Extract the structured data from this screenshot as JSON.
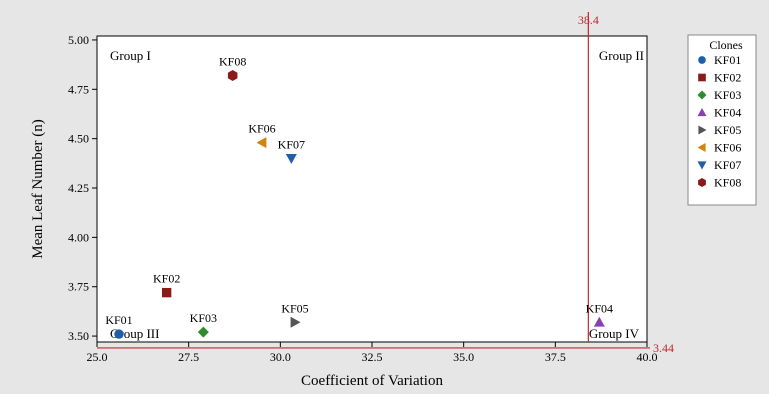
{
  "chart_data": {
    "type": "scatter",
    "xlabel": "Coefficient of Variation",
    "ylabel": "Mean Leaf Number (n)",
    "xlim": [
      25.0,
      40.0
    ],
    "ylim": [
      3.47,
      5.02
    ],
    "xticks": [
      25.0,
      27.5,
      30.0,
      32.5,
      35.0,
      37.5,
      40.0
    ],
    "xtick_labels": [
      "25.0",
      "27.5",
      "30.0",
      "32.5",
      "35.0",
      "37.5",
      "40.0"
    ],
    "yticks": [
      3.5,
      3.75,
      4.0,
      4.25,
      4.5,
      4.75,
      5.0
    ],
    "ytick_labels": [
      "3.50",
      "3.75",
      "4.00",
      "4.25",
      "4.50",
      "4.75",
      "5.00"
    ],
    "grid": false,
    "legend_title": "Clones",
    "legend_position": "right",
    "series": [
      {
        "name": "KF01",
        "x": 25.6,
        "y": 3.51,
        "marker": "circle",
        "color": "#1f5fa8"
      },
      {
        "name": "KF02",
        "x": 26.9,
        "y": 3.72,
        "marker": "square",
        "color": "#8b1a1a"
      },
      {
        "name": "KF03",
        "x": 27.9,
        "y": 3.52,
        "marker": "diamond",
        "color": "#2e8b2e"
      },
      {
        "name": "KF04",
        "x": 38.7,
        "y": 3.57,
        "marker": "triangle-up",
        "color": "#8b3fb3"
      },
      {
        "name": "KF05",
        "x": 30.4,
        "y": 3.57,
        "marker": "triangle-right",
        "color": "#555555"
      },
      {
        "name": "KF06",
        "x": 29.5,
        "y": 4.48,
        "marker": "triangle-left",
        "color": "#d4830e"
      },
      {
        "name": "KF07",
        "x": 30.3,
        "y": 4.4,
        "marker": "triangle-down",
        "color": "#1f5fa8"
      },
      {
        "name": "KF08",
        "x": 28.7,
        "y": 4.82,
        "marker": "hexagon",
        "color": "#8b1a1a"
      }
    ],
    "reference_lines": [
      {
        "axis": "x",
        "value": 38.4,
        "label": "38.4",
        "color": "#c0282d"
      },
      {
        "axis": "y",
        "value": 3.44,
        "label": "3.44",
        "color": "#c0282d"
      }
    ],
    "annotations": [
      {
        "text": "Group I",
        "region": "top-left"
      },
      {
        "text": "Group II",
        "region": "top-right"
      },
      {
        "text": "Group III",
        "region": "bottom-left"
      },
      {
        "text": "Group IV",
        "region": "bottom-right"
      }
    ]
  }
}
